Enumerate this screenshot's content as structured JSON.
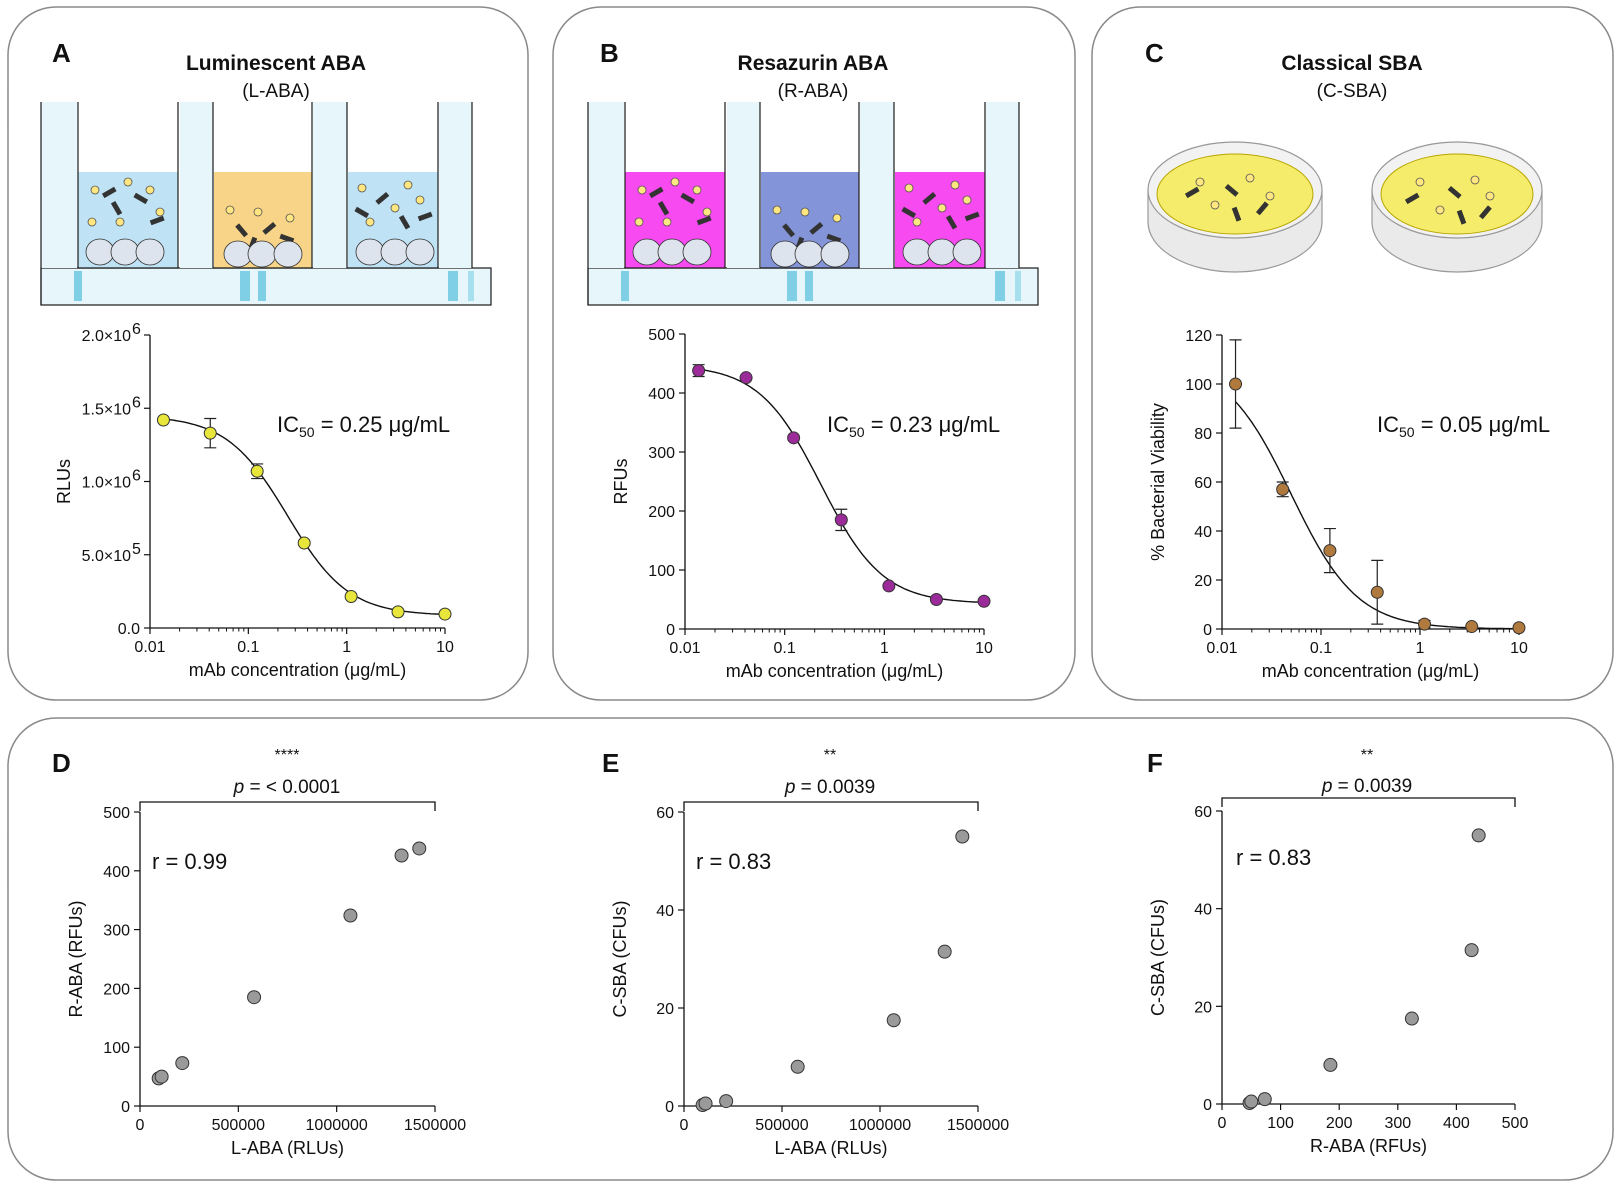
{
  "panels": {
    "A": {
      "letter": "A",
      "title": "Luminescent ABA",
      "subtitle": "(L-ABA)",
      "ic50_prefix": "IC",
      "ic50_sub": "50",
      "ic50_value": " = 0.25 μg/mL"
    },
    "B": {
      "letter": "B",
      "title": "Resazurin ABA",
      "subtitle": "(R-ABA)",
      "ic50_prefix": "IC",
      "ic50_sub": "50",
      "ic50_value": " = 0.23 μg/mL"
    },
    "C": {
      "letter": "C",
      "title": "Classical SBA",
      "subtitle": "(C-SBA)",
      "ic50_prefix": "IC",
      "ic50_sub": "50",
      "ic50_value": " = 0.05 μg/mL"
    },
    "D": {
      "letter": "D",
      "stars": "****",
      "p_label": "p",
      "p_value": " = < 0.0001",
      "r_label": "r = 0.99"
    },
    "E": {
      "letter": "E",
      "stars": "**",
      "p_label": "p",
      "p_value": " = 0.0039",
      "r_label": "r = 0.83"
    },
    "F": {
      "letter": "F",
      "stars": "**",
      "p_label": "p",
      "p_value": " = 0.0039",
      "r_label": "r = 0.83"
    }
  },
  "colors": {
    "A": "#e8e63a",
    "B": "#9c2b9a",
    "C": "#b07a3e",
    "scatter": "#9a9a9a",
    "wellA": "#bfe3f5",
    "wellB": "#f74af0",
    "wellB2": "#8494d8",
    "wellA2": "#f7d488"
  },
  "chart_data": [
    {
      "id": "A",
      "type": "line",
      "title": "Luminescent ABA",
      "xlabel": "mAb concentration (μg/mL)",
      "ylabel": "RLUs",
      "xscale": "log",
      "xlim": [
        0.01,
        10
      ],
      "ylim": [
        0,
        2000000
      ],
      "x_ticks": [
        "0.01",
        "0.1",
        "1",
        "10"
      ],
      "y_ticks": [
        "0.0",
        "5.0×10",
        "1.0×10",
        "1.5×10",
        "2.0×10"
      ],
      "y_tick_exps": [
        "",
        "5",
        "6",
        "6",
        "6"
      ],
      "x": [
        0.0137,
        0.041,
        0.123,
        0.37,
        1.11,
        3.33,
        10
      ],
      "values": [
        1420000,
        1330000,
        1070000,
        580000,
        215000,
        110000,
        95000
      ],
      "err": [
        0,
        100000,
        50000,
        0,
        0,
        0,
        0
      ],
      "fit": {
        "top": 1450000,
        "bottom": 85000,
        "ic50": 0.25,
        "hill": 1.4
      }
    },
    {
      "id": "B",
      "type": "line",
      "title": "Resazurin ABA",
      "xlabel": "mAb concentration (μg/mL)",
      "ylabel": "RFUs",
      "xscale": "log",
      "xlim": [
        0.01,
        10
      ],
      "ylim": [
        0,
        500
      ],
      "x_ticks": [
        "0.01",
        "0.1",
        "1",
        "10"
      ],
      "y_ticks": [
        "0",
        "100",
        "200",
        "300",
        "400",
        "500"
      ],
      "x": [
        0.0137,
        0.041,
        0.123,
        0.37,
        1.11,
        3.33,
        10
      ],
      "values": [
        438,
        426,
        324,
        185,
        73,
        50,
        47
      ],
      "err": [
        10,
        0,
        0,
        18,
        0,
        0,
        0
      ],
      "fit": {
        "top": 448,
        "bottom": 43,
        "ic50": 0.23,
        "hill": 1.4
      }
    },
    {
      "id": "C",
      "type": "line",
      "title": "Classical SBA",
      "xlabel": "mAb concentration (μg/mL)",
      "ylabel": "% Bacterial Viability",
      "xscale": "log",
      "xlim": [
        0.01,
        10
      ],
      "ylim": [
        0,
        120
      ],
      "x_ticks": [
        "0.01",
        "0.1",
        "1",
        "10"
      ],
      "y_ticks": [
        "0",
        "20",
        "40",
        "60",
        "80",
        "100",
        "120"
      ],
      "x": [
        0.0137,
        0.041,
        0.123,
        0.37,
        1.11,
        3.33,
        10
      ],
      "values": [
        100,
        57,
        32,
        15,
        2,
        1,
        0.5
      ],
      "err": [
        18,
        3,
        9,
        13,
        1.5,
        0,
        0
      ],
      "fit": {
        "top": 110,
        "bottom": 0,
        "ic50": 0.05,
        "hill": 1.3
      }
    },
    {
      "id": "D",
      "type": "scatter",
      "xlabel": "L-ABA (RLUs)",
      "ylabel": "R-ABA (RFUs)",
      "xlim": [
        0,
        1500000
      ],
      "ylim": [
        0,
        500
      ],
      "x_ticks": [
        "0",
        "500000",
        "1000000",
        "1500000"
      ],
      "x_tick_vals": [
        0,
        500000,
        1000000,
        1500000
      ],
      "y_ticks": [
        "0",
        "100",
        "200",
        "300",
        "400",
        "500"
      ],
      "x": [
        95000,
        110000,
        215000,
        580000,
        1070000,
        1330000,
        1420000
      ],
      "values": [
        47,
        50,
        73,
        185,
        324,
        426,
        438
      ]
    },
    {
      "id": "E",
      "type": "scatter",
      "xlabel": "L-ABA (RLUs)",
      "ylabel": "C-SBA (CFUs)",
      "xlim": [
        0,
        1500000
      ],
      "ylim": [
        0,
        60
      ],
      "x_ticks": [
        "0",
        "500000",
        "1000000",
        "1500000"
      ],
      "x_tick_vals": [
        0,
        500000,
        1000000,
        1500000
      ],
      "y_ticks": [
        "0",
        "20",
        "40",
        "60"
      ],
      "x": [
        95000,
        110000,
        215000,
        580000,
        1070000,
        1330000,
        1420000
      ],
      "values": [
        0.2,
        0.5,
        1,
        8,
        17.5,
        31.5,
        55
      ]
    },
    {
      "id": "F",
      "type": "scatter",
      "xlabel": "R-ABA (RFUs)",
      "ylabel": "C-SBA (CFUs)",
      "xlim": [
        0,
        500
      ],
      "ylim": [
        0,
        60
      ],
      "x_ticks": [
        "0",
        "100",
        "200",
        "300",
        "400",
        "500"
      ],
      "x_tick_vals": [
        0,
        100,
        200,
        300,
        400,
        500
      ],
      "y_ticks": [
        "0",
        "20",
        "40",
        "60"
      ],
      "x": [
        47,
        50,
        73,
        185,
        324,
        426,
        438
      ],
      "values": [
        0.2,
        0.5,
        1,
        8,
        17.5,
        31.5,
        55
      ]
    }
  ]
}
